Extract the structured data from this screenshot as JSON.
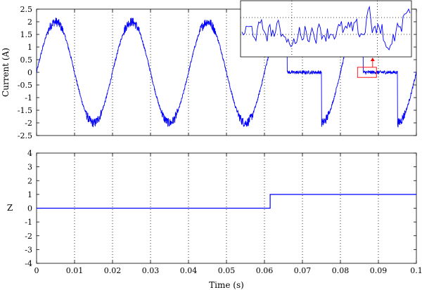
{
  "chart_data": [
    {
      "type": "line",
      "ylabel": "Current (A)",
      "xlim": [
        0,
        0.1
      ],
      "ylim": [
        -2.5,
        2.5
      ],
      "x_ticks": [
        "0",
        "0.01",
        "0.02",
        "0.03",
        "0.04",
        "0.05",
        "0.06",
        "0.07",
        "0.08",
        "0.09",
        "0.1"
      ],
      "y_ticks": [
        "2.5",
        "2",
        "1.5",
        "1",
        "0.5",
        "0",
        "-0.5",
        "-1",
        "-1.5",
        "-2",
        "-2.5"
      ],
      "grid": "vertical dotted",
      "series": [
        {
          "color": "#0000ff",
          "description_values": {
            "amplitude_before_fault": 2.0,
            "frequency_hz": 50,
            "fault_start_s": 0.0615,
            "fault_segments_s": [
              [
                0.066,
                0.075
              ],
              [
                0.086,
                0.095
              ]
            ],
            "fault_level": 0.0
          },
          "x": [
            0.0,
            0.0025,
            0.005,
            0.0075,
            0.01,
            0.0125,
            0.015,
            0.0175,
            0.02,
            0.0225,
            0.025,
            0.0275,
            0.03,
            0.0325,
            0.035,
            0.0375,
            0.04,
            0.0425,
            0.045,
            0.0475,
            0.05,
            0.0525,
            0.055,
            0.0575,
            0.06,
            0.0625,
            0.065,
            0.07,
            0.075,
            0.0775,
            0.08,
            0.0825,
            0.085,
            0.09,
            0.095,
            0.0975,
            0.1
          ],
          "y": [
            0.0,
            1.41,
            2.0,
            1.41,
            0.0,
            -1.41,
            -2.0,
            -1.41,
            0.0,
            1.41,
            2.0,
            1.41,
            0.0,
            -1.41,
            -2.0,
            -1.41,
            0.0,
            1.41,
            2.0,
            1.41,
            0.0,
            -1.41,
            -2.0,
            -1.41,
            0.0,
            0.4,
            0.0,
            0.0,
            0.0,
            -1.41,
            0.0,
            0.3,
            0.0,
            0.0,
            0.0,
            -1.41,
            0.0
          ]
        }
      ],
      "inset": {
        "source_xrange": [
          0.0845,
          0.0895
        ],
        "source_yrange": [
          -0.2,
          0.2
        ],
        "has_zoom_arrow": true
      }
    },
    {
      "type": "line",
      "xlabel": "Time (s)",
      "ylabel": "Z",
      "xlim": [
        0,
        0.1
      ],
      "ylim": [
        -4,
        4
      ],
      "x_ticks": [
        "0",
        "0.01",
        "0.02",
        "0.03",
        "0.04",
        "0.05",
        "0.06",
        "0.07",
        "0.08",
        "0.09",
        "0.1"
      ],
      "y_ticks": [
        "4",
        "3",
        "2",
        "1",
        "0",
        "-1",
        "-2",
        "-3",
        "-4"
      ],
      "grid": "vertical dotted",
      "series": [
        {
          "color": "#0000ff",
          "x": [
            0,
            0.0615,
            0.0615,
            0.1
          ],
          "y": [
            0,
            0,
            1,
            1
          ]
        }
      ]
    }
  ]
}
